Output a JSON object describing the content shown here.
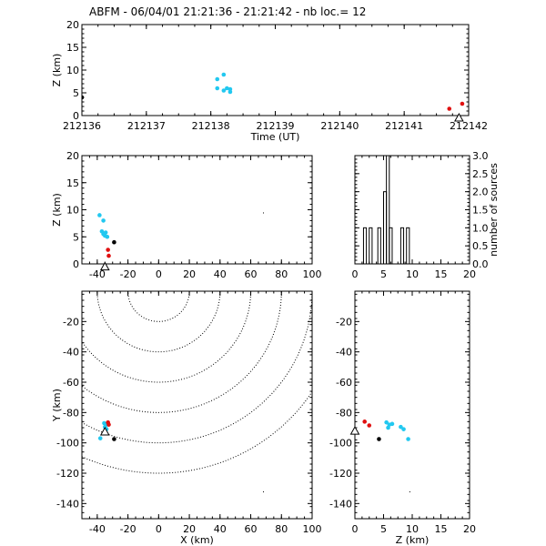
{
  "title": "ABFM - 06/04/01 21:21:36 - 21:21:42 - nb loc.=       12",
  "colors": {
    "cyan": "#22c8f0",
    "red": "#e01010",
    "black": "#000000",
    "axis": "#000000"
  },
  "chart_data": [
    {
      "id": "time_height",
      "type": "scatter",
      "xlabel": "Time (UT)",
      "ylabel": "Z (km)",
      "xlim": [
        212136,
        212142
      ],
      "ylim": [
        0,
        20
      ],
      "xticks": [
        "212136",
        "212137",
        "212138",
        "212139",
        "212140",
        "212141",
        "212142"
      ],
      "yticks": [
        "0",
        "5",
        "10",
        "15",
        "20"
      ],
      "points": [
        {
          "x": 212136.0,
          "y": 4.0,
          "c": "black"
        },
        {
          "x": 212138.1,
          "y": 8.0,
          "c": "cyan"
        },
        {
          "x": 212138.2,
          "y": 9.0,
          "c": "cyan"
        },
        {
          "x": 212138.1,
          "y": 6.0,
          "c": "cyan"
        },
        {
          "x": 212138.2,
          "y": 5.5,
          "c": "cyan"
        },
        {
          "x": 212138.3,
          "y": 5.2,
          "c": "cyan"
        },
        {
          "x": 212138.25,
          "y": 6.0,
          "c": "cyan"
        },
        {
          "x": 212138.3,
          "y": 5.8,
          "c": "cyan"
        },
        {
          "x": 212141.7,
          "y": 1.5,
          "c": "red"
        },
        {
          "x": 212141.9,
          "y": 2.6,
          "c": "red"
        }
      ],
      "station": {
        "x": 212141.85,
        "y": -0.6
      }
    },
    {
      "id": "xz",
      "type": "scatter",
      "xlabel": "",
      "ylabel": "Z (km)",
      "xlim": [
        -50,
        100
      ],
      "ylim": [
        0,
        20
      ],
      "xticks": [
        "-40",
        "-20",
        "0",
        "20",
        "40",
        "60",
        "80",
        "100"
      ],
      "yticks": [
        "0",
        "5",
        "10",
        "15",
        "20"
      ],
      "points": [
        {
          "x": -38.5,
          "y": 9.0,
          "c": "cyan"
        },
        {
          "x": -36.0,
          "y": 8.0,
          "c": "cyan"
        },
        {
          "x": -37.0,
          "y": 6.0,
          "c": "cyan"
        },
        {
          "x": -36.0,
          "y": 5.5,
          "c": "cyan"
        },
        {
          "x": -35.0,
          "y": 5.2,
          "c": "cyan"
        },
        {
          "x": -34.5,
          "y": 5.8,
          "c": "cyan"
        },
        {
          "x": -33.5,
          "y": 5.0,
          "c": "cyan"
        },
        {
          "x": -29.0,
          "y": 4.0,
          "c": "black"
        },
        {
          "x": -33.0,
          "y": 2.6,
          "c": "red"
        },
        {
          "x": -32.5,
          "y": 1.5,
          "c": "red"
        }
      ],
      "station": {
        "x": -35.0,
        "y": -0.6
      },
      "dots": [
        {
          "x": 68.0,
          "y": 9.5
        }
      ]
    },
    {
      "id": "histogram",
      "type": "bar",
      "xlabel": "",
      "ylabel": "number of sources",
      "xlim": [
        0,
        20
      ],
      "ylim": [
        0,
        3
      ],
      "xticks": [
        "0",
        "5",
        "10",
        "15",
        "20"
      ],
      "yticks": [
        "0.0",
        "0.5",
        "1.0",
        "1.5",
        "2.0",
        "2.5",
        "3.0"
      ],
      "bin_width": 0.5,
      "bins": [
        {
          "x": 1.5,
          "v": 1
        },
        {
          "x": 2.5,
          "v": 1
        },
        {
          "x": 4.0,
          "v": 1
        },
        {
          "x": 5.0,
          "v": 2
        },
        {
          "x": 5.5,
          "v": 3
        },
        {
          "x": 6.0,
          "v": 1
        },
        {
          "x": 8.0,
          "v": 1
        },
        {
          "x": 9.0,
          "v": 1
        }
      ]
    },
    {
      "id": "xy",
      "type": "scatter",
      "xlabel": "X (km)",
      "ylabel": "Y (km)",
      "xlim": [
        -50,
        100
      ],
      "ylim": [
        -150,
        0
      ],
      "xticks": [
        "-40",
        "-20",
        "0",
        "20",
        "40",
        "60",
        "80",
        "100"
      ],
      "yticks": [
        "-140",
        "-120",
        "-100",
        "-80",
        "-60",
        "-40",
        "-20"
      ],
      "range_rings": [
        20,
        40,
        60,
        80,
        100,
        120
      ],
      "ring_center": {
        "x": 0,
        "y": 0
      },
      "points": [
        {
          "x": -35.5,
          "y": -87.0,
          "c": "cyan"
        },
        {
          "x": -34.0,
          "y": -88.0,
          "c": "cyan"
        },
        {
          "x": -35.0,
          "y": -89.5,
          "c": "cyan"
        },
        {
          "x": -34.5,
          "y": -90.5,
          "c": "cyan"
        },
        {
          "x": -34.0,
          "y": -91.0,
          "c": "cyan"
        },
        {
          "x": -38.0,
          "y": -97.0,
          "c": "cyan"
        },
        {
          "x": -33.0,
          "y": -86.5,
          "c": "red"
        },
        {
          "x": -32.5,
          "y": -88.0,
          "c": "red"
        },
        {
          "x": -29.0,
          "y": -97.5,
          "c": "black"
        }
      ],
      "station": {
        "x": -35.0,
        "y": -93.0
      },
      "dots": [
        {
          "x": 68.0,
          "y": -132.0
        }
      ]
    },
    {
      "id": "zy",
      "type": "scatter",
      "xlabel": "Z (km)",
      "ylabel": "",
      "xlim": [
        0,
        20
      ],
      "ylim": [
        -150,
        0
      ],
      "xticks": [
        "0",
        "5",
        "10",
        "15",
        "20"
      ],
      "yticks": [
        "-140",
        "-120",
        "-100",
        "-80",
        "-60",
        "-40",
        "-20"
      ],
      "points": [
        {
          "x": 1.7,
          "y": -86.0,
          "c": "red"
        },
        {
          "x": 2.5,
          "y": -88.5,
          "c": "red"
        },
        {
          "x": 5.5,
          "y": -86.5,
          "c": "cyan"
        },
        {
          "x": 6.0,
          "y": -88.0,
          "c": "cyan"
        },
        {
          "x": 5.8,
          "y": -90.0,
          "c": "cyan"
        },
        {
          "x": 6.5,
          "y": -87.5,
          "c": "cyan"
        },
        {
          "x": 8.0,
          "y": -89.5,
          "c": "cyan"
        },
        {
          "x": 8.5,
          "y": -91.0,
          "c": "cyan"
        },
        {
          "x": 9.3,
          "y": -97.5,
          "c": "cyan"
        },
        {
          "x": 4.2,
          "y": -97.5,
          "c": "black"
        }
      ],
      "station": {
        "x": 0.0,
        "y": -92.5
      },
      "dots": [
        {
          "x": 9.5,
          "y": -132.0
        }
      ]
    }
  ]
}
